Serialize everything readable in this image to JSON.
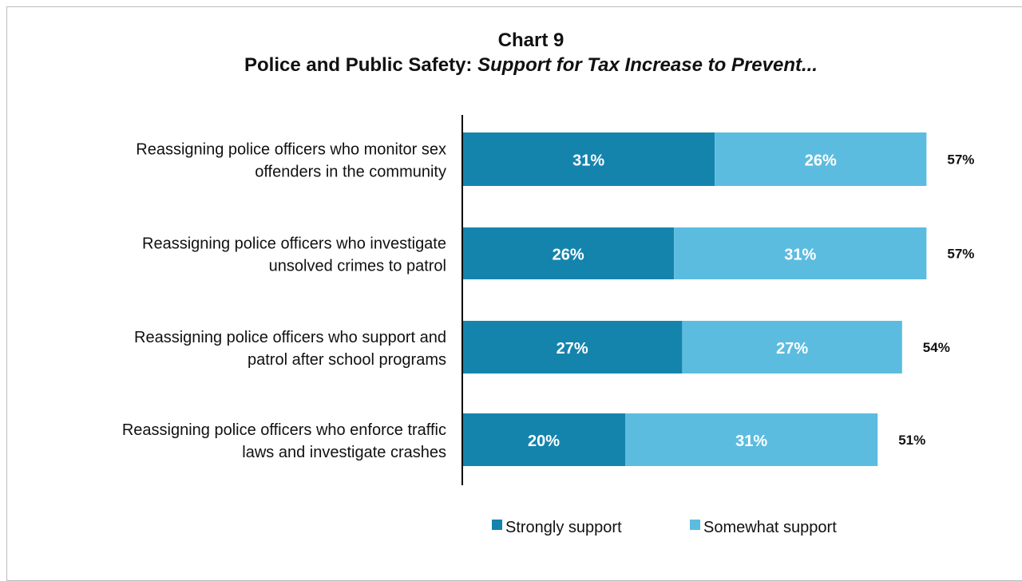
{
  "chart_data": {
    "type": "bar",
    "orientation": "horizontal",
    "stacked": true,
    "title": "Chart 9",
    "subtitle_plain": "Police and Public Safety: ",
    "subtitle_italic": "Support for Tax Increase to Prevent...",
    "categories": [
      [
        "Reassigning police officers who monitor sex",
        "offenders in the community"
      ],
      [
        "Reassigning police officers who investigate",
        "unsolved crimes to patrol"
      ],
      [
        "Reassigning police officers who support and",
        "patrol after school programs"
      ],
      [
        "Reassigning police officers who enforce traffic",
        "laws and investigate crashes"
      ]
    ],
    "series": [
      {
        "name": "Strongly support",
        "values": [
          31,
          26,
          27,
          20
        ],
        "labels": [
          "31%",
          "26%",
          "27%",
          "20%"
        ],
        "color": "#1484ad"
      },
      {
        "name": "Somewhat support",
        "values": [
          26,
          31,
          27,
          31
        ],
        "labels": [
          "26%",
          "31%",
          "27%",
          "31%"
        ],
        "color": "#5cbce0"
      }
    ],
    "totals": [
      "57%",
      "57%",
      "54%",
      "51%"
    ],
    "xlim": [
      0,
      100
    ],
    "grid": false,
    "legend_position": "bottom"
  }
}
